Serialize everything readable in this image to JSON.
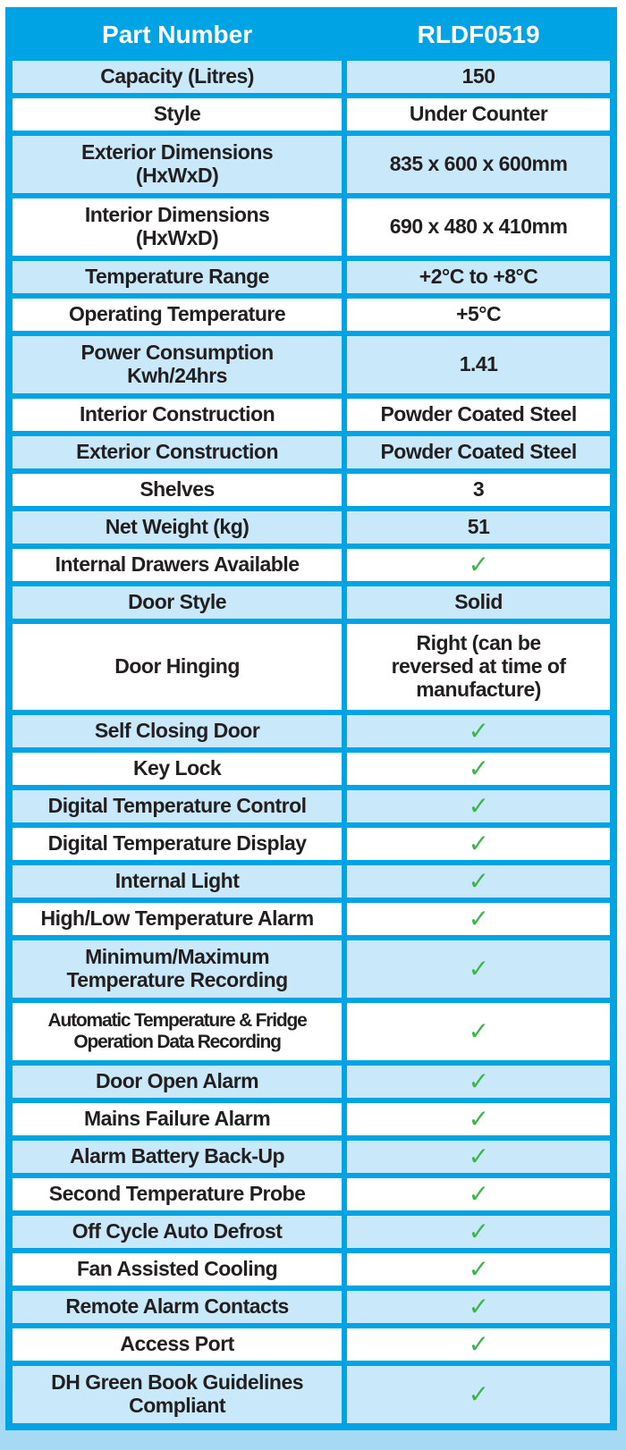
{
  "colors": {
    "header_blue": "#00a3e4",
    "row_light_blue": "#c9e9fa",
    "check_green": "#3cb54a",
    "text": "#231f20",
    "page_bottom_blue": "#a6daf4"
  },
  "header": {
    "part_number_label": "Part Number",
    "part_number_value": "RLDF0519"
  },
  "rows": [
    {
      "label": "Capacity (Litres)",
      "value": "150",
      "type": "text",
      "lines": 1
    },
    {
      "label": "Style",
      "value": "Under Counter",
      "type": "text",
      "lines": 1
    },
    {
      "label": "Exterior Dimensions\n(HxWxD)",
      "value": "835 x 600 x 600mm",
      "type": "text",
      "lines": 2
    },
    {
      "label": "Interior Dimensions\n(HxWxD)",
      "value": "690 x 480 x 410mm",
      "type": "text",
      "lines": 2
    },
    {
      "label": "Temperature Range",
      "value": "+2°C to +8°C",
      "type": "text",
      "lines": 1
    },
    {
      "label": "Operating Temperature",
      "value": "+5°C",
      "type": "text",
      "lines": 1
    },
    {
      "label": "Power Consumption\nKwh/24hrs",
      "value": "1.41",
      "type": "text",
      "lines": 2
    },
    {
      "label": "Interior Construction",
      "value": "Powder Coated Steel",
      "type": "text",
      "lines": 1
    },
    {
      "label": "Exterior Construction",
      "value": "Powder Coated Steel",
      "type": "text",
      "lines": 1
    },
    {
      "label": "Shelves",
      "value": "3",
      "type": "text",
      "lines": 1
    },
    {
      "label": "Net Weight (kg)",
      "value": "51",
      "type": "text",
      "lines": 1
    },
    {
      "label": "Internal Drawers Available",
      "value": "✓",
      "type": "check",
      "lines": 1
    },
    {
      "label": "Door Style",
      "value": "Solid",
      "type": "text",
      "lines": 1
    },
    {
      "label": "Door Hinging",
      "value": "Right (can be\nreversed at time of\nmanufacture)",
      "type": "text",
      "lines": 3
    },
    {
      "label": "Self Closing Door",
      "value": "✓",
      "type": "check",
      "lines": 1
    },
    {
      "label": "Key Lock",
      "value": "✓",
      "type": "check",
      "lines": 1
    },
    {
      "label": "Digital Temperature Control",
      "value": "✓",
      "type": "check",
      "lines": 1
    },
    {
      "label": "Digital Temperature Display",
      "value": "✓",
      "type": "check",
      "lines": 1
    },
    {
      "label": "Internal Light",
      "value": "✓",
      "type": "check",
      "lines": 1
    },
    {
      "label": "High/Low Temperature Alarm",
      "value": "✓",
      "type": "check",
      "lines": 1
    },
    {
      "label": "Minimum/Maximum\nTemperature Recording",
      "value": "✓",
      "type": "check",
      "lines": 2
    },
    {
      "label": "Automatic Temperature & Fridge\nOperation Data Recording",
      "value": "✓",
      "type": "check",
      "lines": 2,
      "condensed": true
    },
    {
      "label": "Door Open Alarm",
      "value": "✓",
      "type": "check",
      "lines": 1
    },
    {
      "label": "Mains Failure Alarm",
      "value": "✓",
      "type": "check",
      "lines": 1
    },
    {
      "label": "Alarm Battery Back-Up",
      "value": "✓",
      "type": "check",
      "lines": 1
    },
    {
      "label": "Second Temperature Probe",
      "value": "✓",
      "type": "check",
      "lines": 1
    },
    {
      "label": "Off Cycle Auto Defrost",
      "value": "✓",
      "type": "check",
      "lines": 1
    },
    {
      "label": "Fan Assisted Cooling",
      "value": "✓",
      "type": "check",
      "lines": 1
    },
    {
      "label": "Remote Alarm Contacts",
      "value": "✓",
      "type": "check",
      "lines": 1
    },
    {
      "label": "Access Port",
      "value": "✓",
      "type": "check",
      "lines": 1
    },
    {
      "label": "DH Green Book Guidelines\nCompliant",
      "value": "✓",
      "type": "check",
      "lines": 2
    }
  ]
}
